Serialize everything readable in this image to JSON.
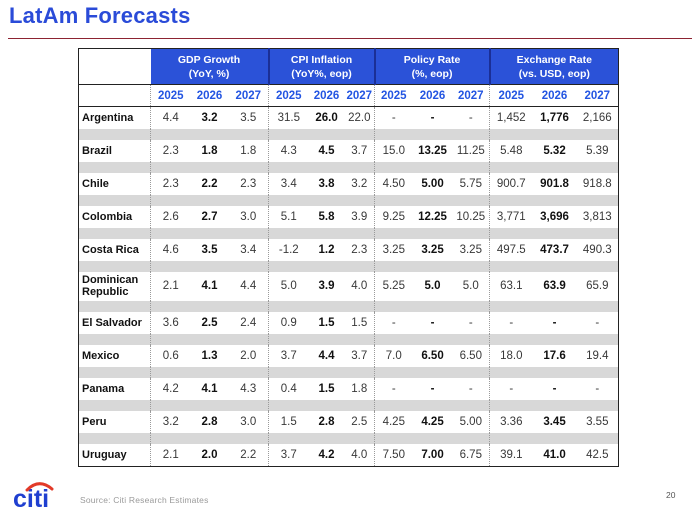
{
  "title": "LatAm Forecasts",
  "colors": {
    "header_blue": "#2b52d8",
    "accent_blue": "#2355e2",
    "title_blue": "#2a4bd8",
    "rule_maroon": "#8c2332",
    "spacer_gray": "#d8d8d8",
    "logo_blue": "#1f3fd0",
    "logo_red": "#e23a28"
  },
  "table": {
    "groups": [
      {
        "label": "GDP Growth",
        "sublabel": "(YoY, %)"
      },
      {
        "label": "CPI Inflation",
        "sublabel": "(YoY%, eop)"
      },
      {
        "label": "Policy Rate",
        "sublabel": "(%, eop)"
      },
      {
        "label": "Exchange Rate",
        "sublabel": "(vs. USD, eop)"
      }
    ],
    "years": [
      "2025",
      "2026",
      "2027"
    ],
    "rows": [
      {
        "country": "Argentina",
        "values": [
          "4.4",
          "3.2",
          "3.5",
          "31.5",
          "26.0",
          "22.0",
          "-",
          "-",
          "-",
          "1,452",
          "1,776",
          "2,166"
        ]
      },
      {
        "country": "Brazil",
        "values": [
          "2.3",
          "1.8",
          "1.8",
          "4.3",
          "4.5",
          "3.7",
          "15.0",
          "13.25",
          "11.25",
          "5.48",
          "5.32",
          "5.39"
        ]
      },
      {
        "country": "Chile",
        "values": [
          "2.3",
          "2.2",
          "2.3",
          "3.4",
          "3.8",
          "3.2",
          "4.50",
          "5.00",
          "5.75",
          "900.7",
          "901.8",
          "918.8"
        ]
      },
      {
        "country": "Colombia",
        "values": [
          "2.6",
          "2.7",
          "3.0",
          "5.1",
          "5.8",
          "3.9",
          "9.25",
          "12.25",
          "10.25",
          "3,771",
          "3,696",
          "3,813"
        ]
      },
      {
        "country": "Costa Rica",
        "values": [
          "4.6",
          "3.5",
          "3.4",
          "-1.2",
          "1.2",
          "2.3",
          "3.25",
          "3.25",
          "3.25",
          "497.5",
          "473.7",
          "490.3"
        ]
      },
      {
        "country": "Dominican Republic",
        "values": [
          "2.1",
          "4.1",
          "4.4",
          "5.0",
          "3.9",
          "4.0",
          "5.25",
          "5.0",
          "5.0",
          "63.1",
          "63.9",
          "65.9"
        ]
      },
      {
        "country": "El Salvador",
        "values": [
          "3.6",
          "2.5",
          "2.4",
          "0.9",
          "1.5",
          "1.5",
          "-",
          "-",
          "-",
          "-",
          "-",
          "-"
        ]
      },
      {
        "country": "Mexico",
        "values": [
          "0.6",
          "1.3",
          "2.0",
          "3.7",
          "4.4",
          "3.7",
          "7.0",
          "6.50",
          "6.50",
          "18.0",
          "17.6",
          "19.4"
        ]
      },
      {
        "country": "Panama",
        "values": [
          "4.2",
          "4.1",
          "4.3",
          "0.4",
          "1.5",
          "1.8",
          "-",
          "-",
          "-",
          "-",
          "-",
          "-"
        ]
      },
      {
        "country": "Peru",
        "values": [
          "3.2",
          "2.8",
          "3.0",
          "1.5",
          "2.8",
          "2.5",
          "4.25",
          "4.25",
          "5.00",
          "3.36",
          "3.45",
          "3.55"
        ]
      },
      {
        "country": "Uruguay",
        "values": [
          "2.1",
          "2.0",
          "2.2",
          "3.7",
          "4.2",
          "4.0",
          "7.50",
          "7.00",
          "6.75",
          "39.1",
          "41.0",
          "42.5"
        ]
      }
    ]
  },
  "footer": {
    "logo_text": "citi",
    "source": "Source: Citi Research Estimates",
    "page_number": "20"
  }
}
